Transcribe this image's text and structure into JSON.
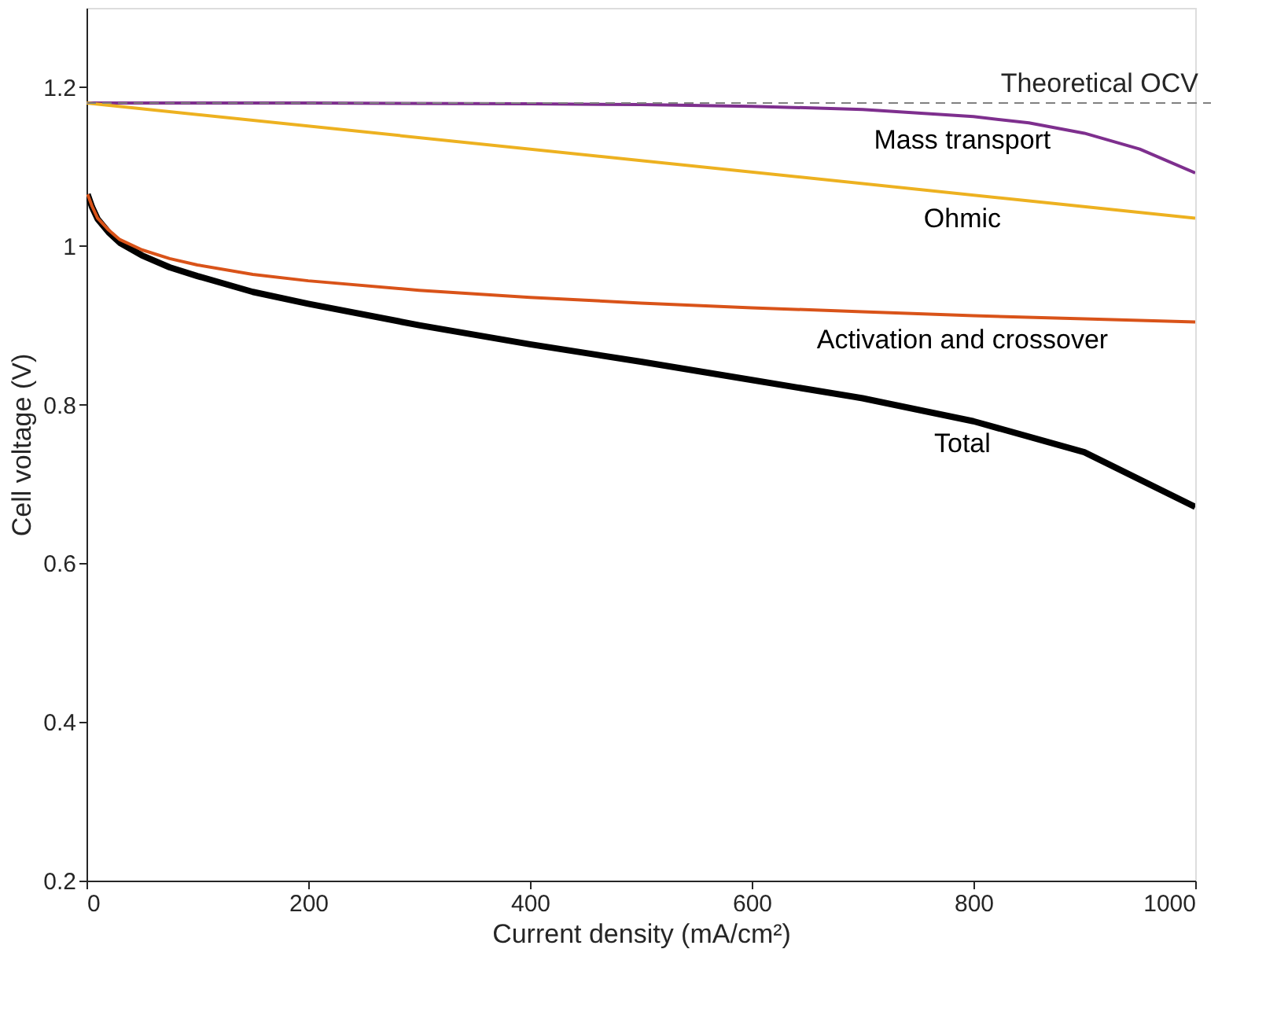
{
  "chart_data": {
    "type": "line",
    "xlabel": "Current density (mA/cm²)",
    "ylabel": "Cell voltage (V)",
    "xlim": [
      0,
      1000
    ],
    "xticks": [
      0,
      200,
      400,
      600,
      800,
      1000
    ],
    "ylim": [
      0.2,
      1.3
    ],
    "yticks": [
      0.2,
      0.4,
      0.6,
      0.8,
      1,
      1.2
    ],
    "marker": "none",
    "line_style": "solid",
    "series": [
      {
        "name": "Mass transport",
        "color": "#7e2f8e",
        "x": [
          0,
          200,
          400,
          500,
          600,
          700,
          800,
          850,
          900,
          950,
          1000
        ],
        "values": [
          1.18,
          1.18,
          1.179,
          1.178,
          1.176,
          1.172,
          1.163,
          1.155,
          1.142,
          1.122,
          1.092
        ]
      },
      {
        "name": "Ohmic",
        "color": "#edb120",
        "x": [
          0,
          1000
        ],
        "values": [
          1.18,
          1.035
        ]
      },
      {
        "name": "Activation and crossover",
        "color": "#d95319",
        "x": [
          1,
          5,
          10,
          20,
          30,
          50,
          75,
          100,
          150,
          200,
          300,
          400,
          500,
          600,
          700,
          800,
          900,
          1000
        ],
        "values": [
          1.065,
          1.05,
          1.035,
          1.02,
          1.008,
          0.995,
          0.984,
          0.976,
          0.964,
          0.956,
          0.944,
          0.935,
          0.928,
          0.922,
          0.917,
          0.912,
          0.908,
          0.904
        ]
      },
      {
        "name": "Total",
        "color": "#000000",
        "x": [
          1,
          5,
          10,
          20,
          30,
          50,
          75,
          100,
          150,
          200,
          300,
          400,
          500,
          600,
          700,
          800,
          900,
          1000
        ],
        "values": [
          1.065,
          1.049,
          1.034,
          1.017,
          1.004,
          0.988,
          0.973,
          0.962,
          0.942,
          0.927,
          0.9,
          0.876,
          0.854,
          0.831,
          0.808,
          0.779,
          0.74,
          0.671
        ]
      }
    ],
    "ref_lines": [
      {
        "axis": "y",
        "value": 1.18,
        "label": "Theoretical OCV",
        "color": "#808080",
        "line_style": "dashed"
      }
    ]
  }
}
